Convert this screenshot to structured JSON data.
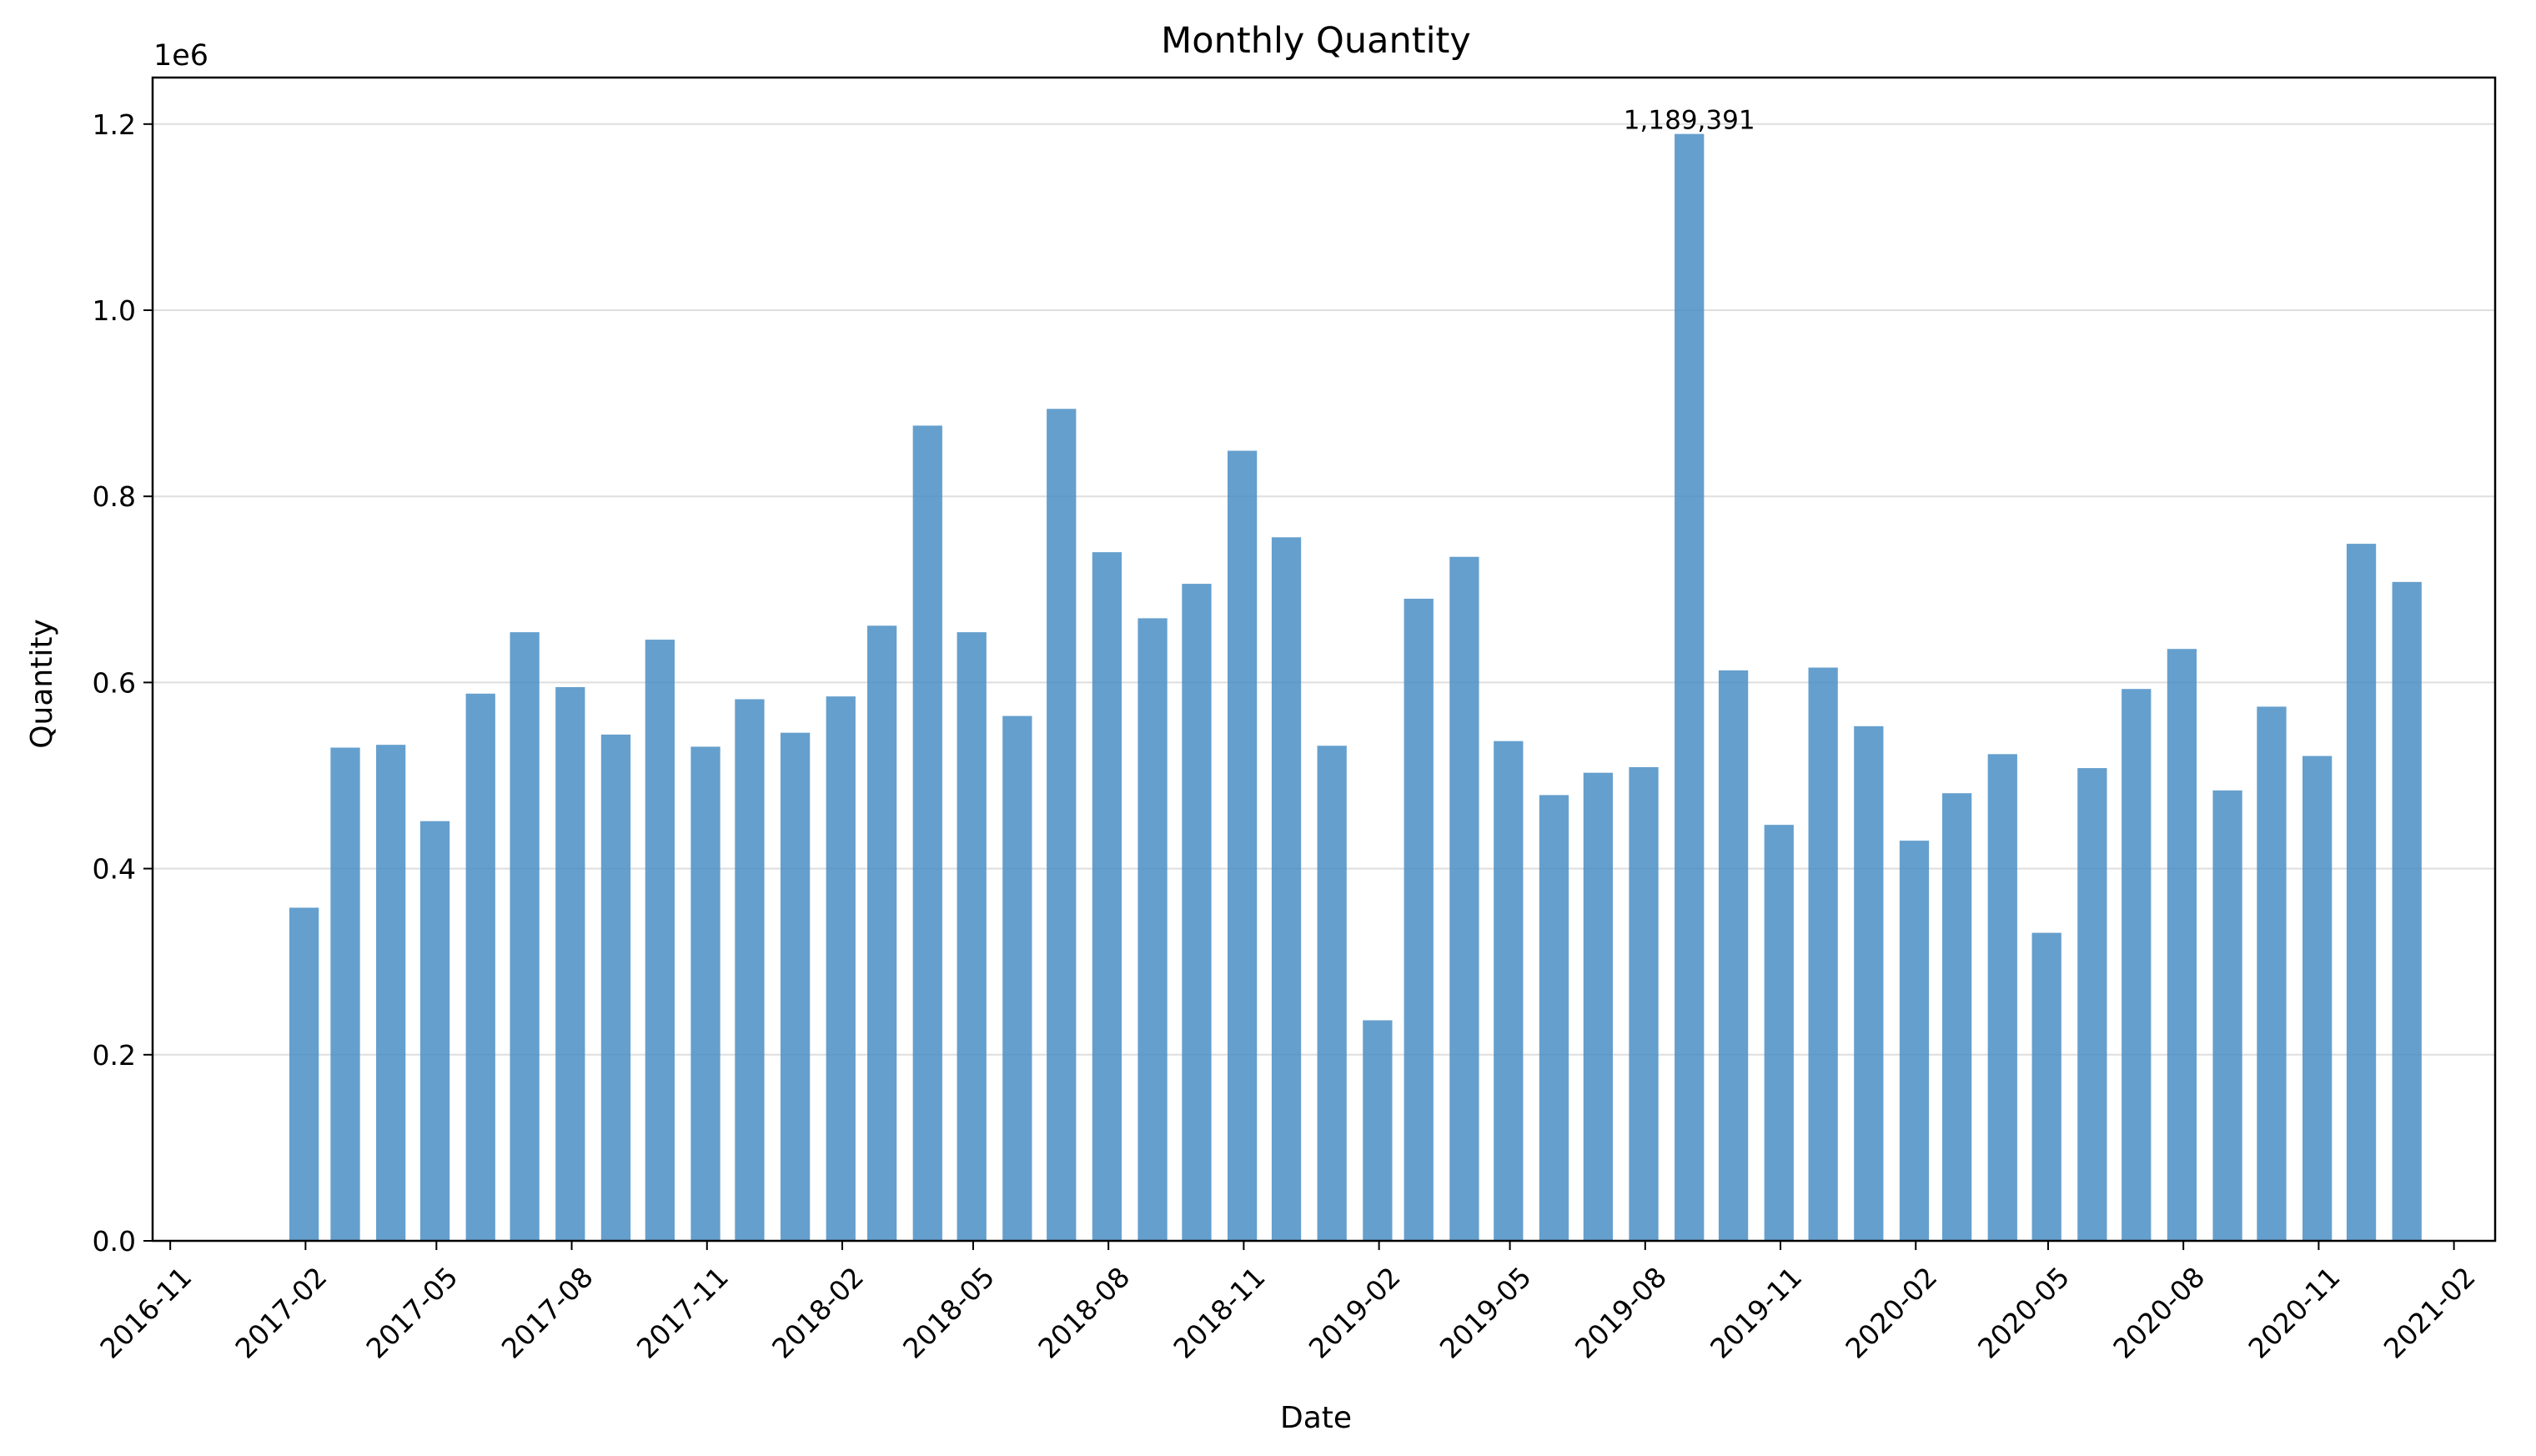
{
  "chart_data": {
    "type": "bar",
    "title": "Monthly Quantity",
    "xlabel": "Date",
    "ylabel": "Quantity",
    "y_scale_label": "1e6",
    "ylim": [
      0,
      1250000
    ],
    "xlim": [
      "2016-10-20",
      "2021-03-01"
    ],
    "grid": "horizontal",
    "bar_color": "#4a8ec4",
    "y_ticks": [
      {
        "value": 0,
        "label": "0.0"
      },
      {
        "value": 200000,
        "label": "0.2"
      },
      {
        "value": 400000,
        "label": "0.4"
      },
      {
        "value": 600000,
        "label": "0.6"
      },
      {
        "value": 800000,
        "label": "0.8"
      },
      {
        "value": 1000000,
        "label": "1.0"
      },
      {
        "value": 1200000,
        "label": "1.2"
      }
    ],
    "x_ticks": [
      "2016-11",
      "2017-02",
      "2017-05",
      "2017-08",
      "2017-11",
      "2018-02",
      "2018-05",
      "2018-08",
      "2018-11",
      "2019-02",
      "2019-05",
      "2019-08",
      "2019-11",
      "2020-02",
      "2020-05",
      "2020-08",
      "2020-11",
      "2021-02"
    ],
    "annotation": {
      "x": "2019-08-31",
      "value": 1189391,
      "label": "1,189,391"
    },
    "x": [
      "2017-01-31",
      "2017-02-28",
      "2017-03-31",
      "2017-04-30",
      "2017-05-31",
      "2017-06-30",
      "2017-07-31",
      "2017-08-31",
      "2017-09-30",
      "2017-10-31",
      "2017-11-30",
      "2017-12-31",
      "2018-01-31",
      "2018-02-28",
      "2018-03-31",
      "2018-04-30",
      "2018-05-31",
      "2018-06-30",
      "2018-07-31",
      "2018-08-31",
      "2018-09-30",
      "2018-10-31",
      "2018-11-30",
      "2018-12-31",
      "2019-01-31",
      "2019-02-28",
      "2019-03-31",
      "2019-04-30",
      "2019-05-31",
      "2019-06-30",
      "2019-07-31",
      "2019-08-31",
      "2019-09-30",
      "2019-10-31",
      "2019-11-30",
      "2019-12-31",
      "2020-01-31",
      "2020-02-29",
      "2020-03-31",
      "2020-04-30",
      "2020-05-31",
      "2020-06-30",
      "2020-07-31",
      "2020-08-31",
      "2020-09-30",
      "2020-10-31",
      "2020-11-30",
      "2020-12-31"
    ],
    "values": [
      358000,
      530000,
      533000,
      451000,
      588000,
      654000,
      595000,
      544000,
      646000,
      531000,
      582000,
      546000,
      585000,
      661000,
      876000,
      654000,
      564000,
      894000,
      740000,
      669000,
      706000,
      849000,
      756000,
      532000,
      237000,
      690000,
      735000,
      537000,
      479000,
      503000,
      509000,
      1189391,
      613000,
      447000,
      616000,
      553000,
      430000,
      481000,
      523000,
      331000,
      508000,
      593000,
      636000,
      484000,
      574000,
      521000,
      749000,
      708000
    ]
  }
}
